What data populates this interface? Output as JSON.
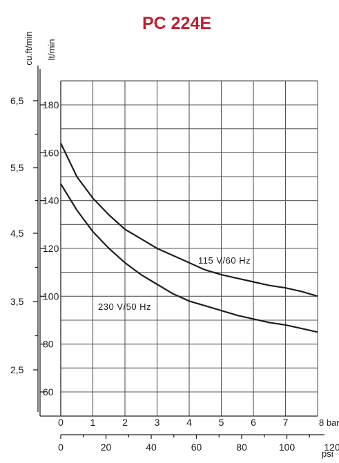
{
  "colors": {
    "title": "#c0202e",
    "ink": "#1e1e1e",
    "grid": "#555555"
  },
  "chart_data": {
    "type": "line",
    "title": "PC 224E",
    "x_bar": {
      "unit_label": "8 bar",
      "range": [
        0,
        8
      ],
      "ticks": [
        "0",
        "1",
        "2",
        "3",
        "4",
        "5",
        "6",
        "7"
      ]
    },
    "x_psi": {
      "unit_label": "psi",
      "range": [
        0,
        120
      ],
      "ticks": [
        "0",
        "20",
        "40",
        "60",
        "80",
        "100",
        "120"
      ]
    },
    "y_ltmin": {
      "unit_label": "lt/min",
      "range": [
        50,
        190
      ],
      "ticks": [
        "60",
        "80",
        "100",
        "120",
        "140",
        "160",
        "180"
      ]
    },
    "y_cuft": {
      "unit_label": "cu.ft/min",
      "ticks": [
        "2,5",
        "3,5",
        "4,5",
        "5,5",
        "6,5"
      ]
    },
    "grid": true,
    "series": [
      {
        "name": "115 V/60 Hz",
        "x": [
          0,
          0.5,
          1,
          1.5,
          2,
          2.5,
          3,
          3.5,
          4,
          4.5,
          5,
          5.5,
          6,
          6.5,
          7,
          7.5,
          8
        ],
        "values": [
          164,
          150,
          141,
          134,
          128,
          124,
          120,
          117,
          114,
          111,
          109,
          107.5,
          106,
          104.5,
          103.5,
          102,
          100
        ]
      },
      {
        "name": "230 V/50 Hz",
        "x": [
          0,
          0.5,
          1,
          1.5,
          2,
          2.5,
          3,
          3.5,
          4,
          4.5,
          5,
          5.5,
          6,
          6.5,
          7,
          7.5,
          8
        ],
        "values": [
          147,
          136,
          127,
          120,
          114,
          109,
          105,
          101,
          98,
          96,
          94,
          92,
          90.5,
          89,
          88,
          86.5,
          85
        ]
      }
    ]
  }
}
